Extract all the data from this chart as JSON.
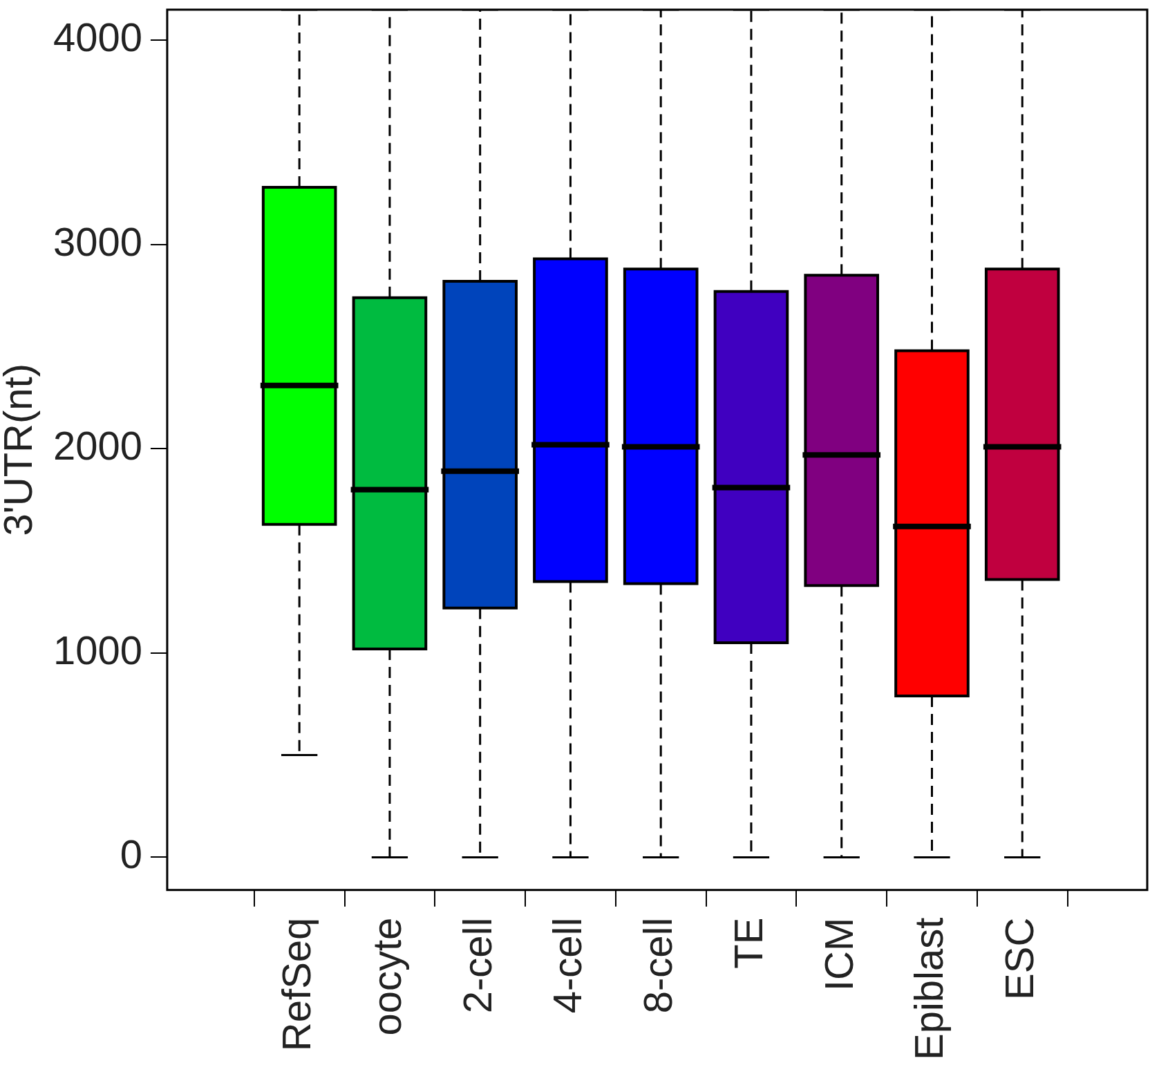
{
  "chart_data": {
    "type": "box",
    "ylabel": "3'UTR(nt)",
    "categories": [
      "RefSeq",
      "oocyte",
      "2-cell",
      "4-cell",
      "8-cell",
      "TE",
      "ICM",
      "Epiblast",
      "ESC"
    ],
    "boxes": [
      {
        "low": 500,
        "q1": 1630,
        "median": 2310,
        "q3": 3280,
        "high": 4150
      },
      {
        "low": 0,
        "q1": 1020,
        "median": 1800,
        "q3": 2740,
        "high": 4150
      },
      {
        "low": 0,
        "q1": 1220,
        "median": 1890,
        "q3": 2820,
        "high": 4150
      },
      {
        "low": 0,
        "q1": 1350,
        "median": 2020,
        "q3": 2930,
        "high": 4150
      },
      {
        "low": 0,
        "q1": 1340,
        "median": 2010,
        "q3": 2880,
        "high": 4150
      },
      {
        "low": 0,
        "q1": 1050,
        "median": 1810,
        "q3": 2770,
        "high": 4150
      },
      {
        "low": 0,
        "q1": 1330,
        "median": 1970,
        "q3": 2850,
        "high": 4150
      },
      {
        "low": 0,
        "q1": 790,
        "median": 1620,
        "q3": 2480,
        "high": 4150
      },
      {
        "low": 0,
        "q1": 1360,
        "median": 2010,
        "q3": 2880,
        "high": 4150
      }
    ],
    "colors": [
      "#00ff00",
      "#00bb40",
      "#0044bb",
      "#0000ff",
      "#0000ff",
      "#4000c0",
      "#800080",
      "#ff0000",
      "#c0003f"
    ],
    "ylim": [
      -160,
      4150
    ],
    "yticks": [
      0,
      1000,
      2000,
      3000,
      4000
    ]
  }
}
